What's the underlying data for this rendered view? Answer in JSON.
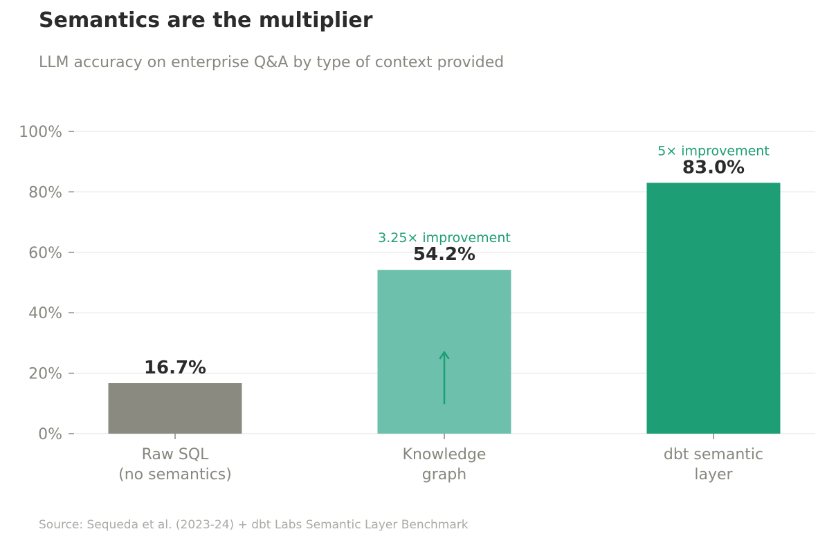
{
  "title": "Semantics are the multiplier",
  "subtitle": "LLM accuracy on enterprise Q&A by type of context provided",
  "source": "Source: Sequeda et al. (2023-24) + dbt Labs Semantic Layer Benchmark",
  "colors": {
    "grid": "#ececec",
    "axis_text": "#87877f",
    "value_text": "#2b2b2b",
    "annotation": "#1e9e75"
  },
  "chart_data": {
    "type": "bar",
    "ylim": [
      0,
      100
    ],
    "y_ticks": [
      0,
      20,
      40,
      60,
      80,
      100
    ],
    "y_tick_labels": [
      "0%",
      "20%",
      "40%",
      "60%",
      "80%",
      "100%"
    ],
    "grid": true,
    "categories": [
      {
        "lines": [
          "Raw SQL",
          "(no semantics)"
        ],
        "value": 16.7,
        "label": "16.7%",
        "color": "#8b8a81",
        "annotation": ""
      },
      {
        "lines": [
          "Knowledge",
          "graph"
        ],
        "value": 54.2,
        "label": "54.2%",
        "color": "#6cc0ac",
        "annotation": "3.25× improvement"
      },
      {
        "lines": [
          "dbt semantic",
          "layer"
        ],
        "value": 83.0,
        "label": "83.0%",
        "color": "#1e9e75",
        "annotation": "5× improvement"
      }
    ],
    "arrow": {
      "category_index": 1,
      "from": 10,
      "to": 27
    }
  }
}
